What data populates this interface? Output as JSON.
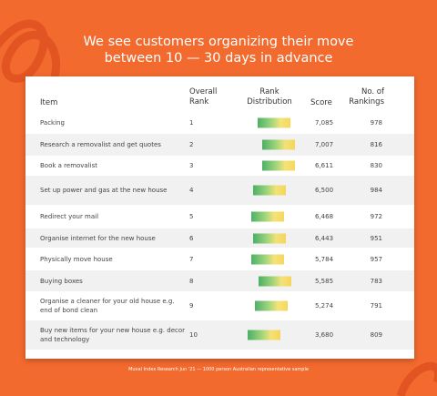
{
  "title": "We see customers organizing their move between 10 — 30 days in advance",
  "table": {
    "header": [
      "Item",
      "Overall Rank",
      "Rank Distribution",
      "Score",
      "No. of Rankings"
    ],
    "rows": [
      [
        "Packing",
        1,
        "7,085",
        978
      ],
      [
        "Research a removalist and get quotes",
        2,
        "7,007",
        816
      ],
      [
        "Book a removalist",
        3,
        "6,611",
        830
      ],
      [
        "Set up power and gas at the new house",
        4,
        "6,500",
        984
      ],
      [
        "Redirect your mail",
        5,
        "6,468",
        972
      ],
      [
        "Organise internet for the new house",
        6,
        "6,443",
        951
      ],
      [
        "Physically move house",
        7,
        "5,784",
        957
      ],
      [
        "Buying boxes",
        8,
        "5,585",
        783
      ],
      [
        "Organise a cleaner for your old house e.g. end of bond clean",
        9,
        "5,274",
        791
      ],
      [
        "Buy new items for your new house e.g. decor and technology",
        10,
        "3,680",
        809
      ]
    ]
  },
  "footer": "Muval Index Research Jun '21 — 1000 person Australian representative sample"
}
